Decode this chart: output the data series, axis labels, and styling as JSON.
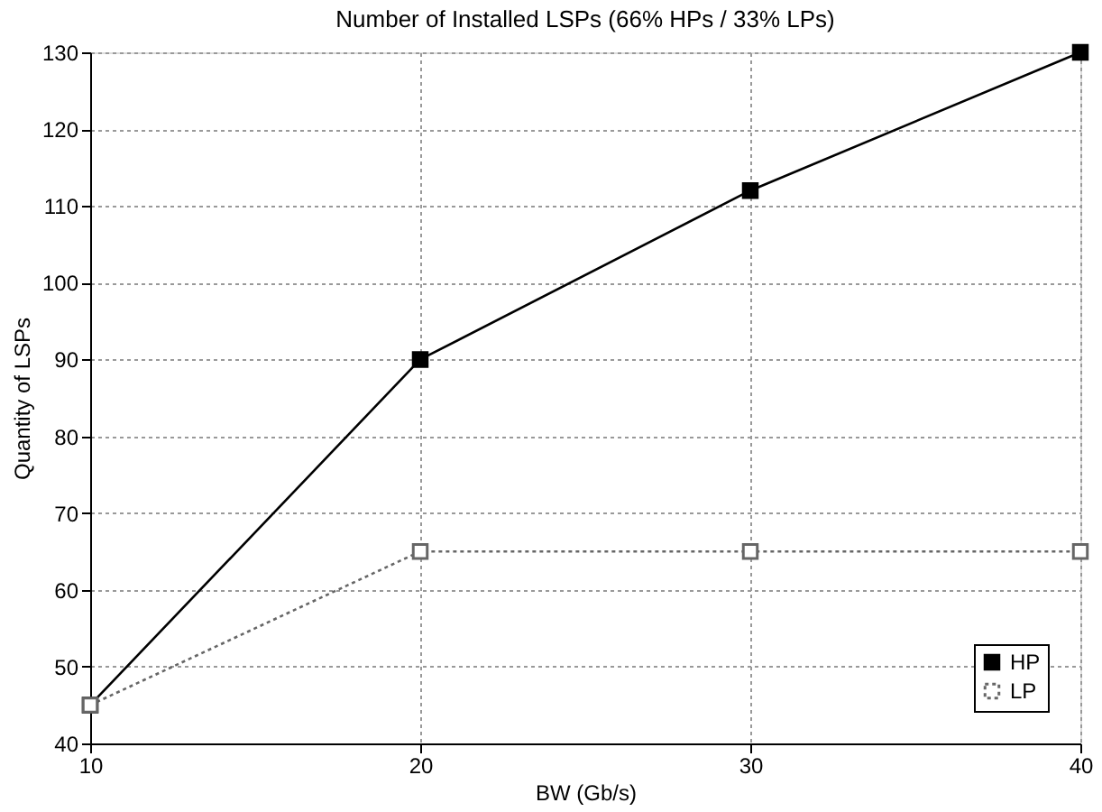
{
  "chart_data": {
    "type": "line",
    "title": "Number of Installed LSPs (66% HPs / 33% LPs)",
    "xlabel": "BW (Gb/s)",
    "ylabel": "Quantity of LSPs",
    "x": [
      10,
      20,
      30,
      40
    ],
    "series": [
      {
        "name": "HP",
        "color": "#000000",
        "values": [
          45,
          90,
          112,
          130
        ],
        "line_style": "solid"
      },
      {
        "name": "LP",
        "color": "#666666",
        "values": [
          45,
          65,
          65,
          65
        ],
        "line_style": "dotted"
      }
    ],
    "xlim": [
      10,
      40
    ],
    "xticks": [
      10,
      20,
      30,
      40
    ],
    "ylim": [
      40,
      130
    ],
    "yticks": [
      40,
      50,
      60,
      70,
      80,
      90,
      100,
      110,
      120,
      130
    ],
    "grid": true,
    "legend": "bottom right",
    "marker": "square"
  }
}
